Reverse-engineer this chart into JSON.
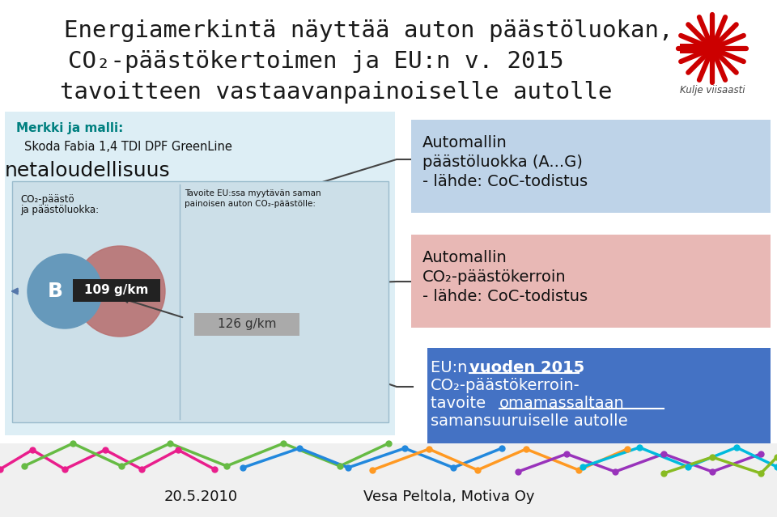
{
  "title_line1": "Energiamerkintä näyttää auton päästöluokan,",
  "title_line2": "CO₂-päästökertoimen ja EU:n v. 2015",
  "title_line3": "tavoitteen vastaavanpainoiselle autolle",
  "brand_label": "Merkki ja malli:",
  "brand_value": "Skoda Fabia 1,4 TDI DPF GreenLine",
  "section_header": "netaloudellisuus",
  "co2_col1": "CO₂-päästö",
  "co2_col2": "ja päästöluokka:",
  "eu_col1": "Tavoite EU:ssa myytävän saman",
  "eu_col2": "painoisen auton CO₂-päästölle:",
  "emission_class": "B",
  "emission_value": "109 g/km",
  "eu_value": "126 g/km",
  "box1_line1": "Automallin",
  "box1_line2": "päästöluokka (A...G)",
  "box1_line3": "- lähde: CoC-todistus",
  "box1_color": "#bed3e8",
  "box2_line1": "Automallin",
  "box2_line2": "CO₂-päästökerroin",
  "box2_line3": "- lähde: CoC-todistus",
  "box2_color": "#e8b8b5",
  "box3_pre": "EU:n ",
  "box3_bold": "vuoden 2015",
  "box3_line2": "CO₂-päästökerroin-",
  "box3_pre3": "tavoite ",
  "box3_ul": "omamassaltaan",
  "box3_line4": "samansuuruiselle autolle",
  "box3_color": "#4472c4",
  "kulje_text": "Kulje viisaasti",
  "footer_date": "20.5.2010",
  "footer_author": "Vesa Peltola, Motiva Oy",
  "bg_color": "#ffffff",
  "title_color": "#1a1a1a",
  "brand_label_color": "#008080",
  "left_outer_bg": "#ddeef5",
  "inner_panel_bg": "#ccdfe8",
  "circle_blue": "#6699bb",
  "circle_pink": "#b87070",
  "class_box_bg": "#222222",
  "eu_arrow_bg": "#aaaaaa",
  "star_color": "#cc0000",
  "line_color": "#444444",
  "divider_color": "#99bbcc",
  "footer_bg": "#e8e8e8"
}
